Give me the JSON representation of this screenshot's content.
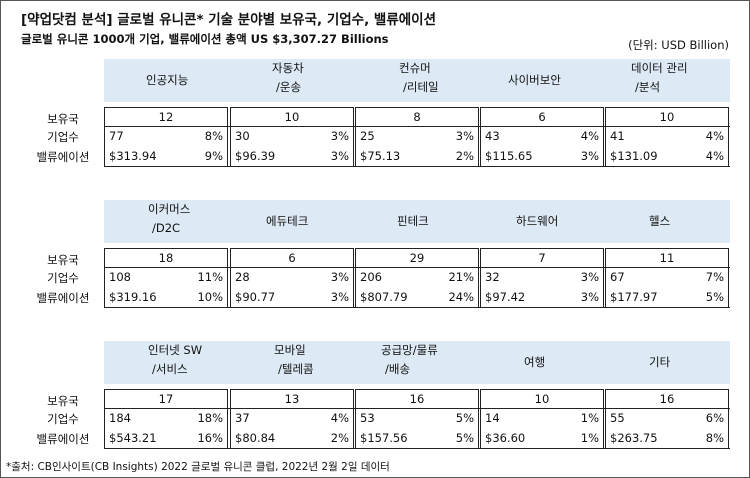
{
  "title": "[약업닷컴 분석] 글로벌 유니콘* 기술 분야별 보유국, 기업수, 밸류에이션",
  "subtitle": "글로벌 유니콘 1000개 기업, 밸류에이션 총액 US $3,307.27 Billions",
  "unit": "(단위: USD Billion)",
  "row_labels": {
    "countries": "보유국",
    "companies": "기업수",
    "valuation": "밸류에이션"
  },
  "blocks": [
    {
      "sectors": [
        {
          "name1": "인공지능",
          "name2": "",
          "countries": "12",
          "companies": "77",
          "companies_pct": "8%",
          "valuation": "$313.94",
          "valuation_pct": "9%"
        },
        {
          "name1": "자동차",
          "name2": "/운송",
          "countries": "10",
          "companies": "30",
          "companies_pct": "3%",
          "valuation": "$96.39",
          "valuation_pct": "3%"
        },
        {
          "name1": "컨슈머",
          "name2": "/리테일",
          "countries": "8",
          "companies": "25",
          "companies_pct": "3%",
          "valuation": "$75.13",
          "valuation_pct": "2%"
        },
        {
          "name1": "사이버보안",
          "name2": "",
          "countries": "6",
          "companies": "43",
          "companies_pct": "4%",
          "valuation": "$115.65",
          "valuation_pct": "3%"
        },
        {
          "name1": "데이터 관리",
          "name2": "/분석",
          "countries": "10",
          "companies": "41",
          "companies_pct": "4%",
          "valuation": "$131.09",
          "valuation_pct": "4%"
        }
      ]
    },
    {
      "sectors": [
        {
          "name1": "이커머스",
          "name2": "/D2C",
          "countries": "18",
          "companies": "108",
          "companies_pct": "11%",
          "valuation": "$319.16",
          "valuation_pct": "10%"
        },
        {
          "name1": "에듀테크",
          "name2": "",
          "countries": "6",
          "companies": "28",
          "companies_pct": "3%",
          "valuation": "$90.77",
          "valuation_pct": "3%"
        },
        {
          "name1": "핀테크",
          "name2": "",
          "countries": "29",
          "companies": "206",
          "companies_pct": "21%",
          "valuation": "$807.79",
          "valuation_pct": "24%"
        },
        {
          "name1": "하드웨어",
          "name2": "",
          "countries": "7",
          "companies": "32",
          "companies_pct": "3%",
          "valuation": "$97.42",
          "valuation_pct": "3%"
        },
        {
          "name1": "헬스",
          "name2": "",
          "countries": "11",
          "companies": "67",
          "companies_pct": "7%",
          "valuation": "$177.97",
          "valuation_pct": "5%"
        }
      ]
    },
    {
      "sectors": [
        {
          "name1": "인터넷 SW",
          "name2": "/서비스",
          "countries": "17",
          "companies": "184",
          "companies_pct": "18%",
          "valuation": "$543.21",
          "valuation_pct": "16%"
        },
        {
          "name1": "모바일",
          "name2": "/텔레콤",
          "countries": "13",
          "companies": "37",
          "companies_pct": "4%",
          "valuation": "$80.84",
          "valuation_pct": "2%"
        },
        {
          "name1": "공급망/물류",
          "name2": "/배송",
          "countries": "16",
          "companies": "53",
          "companies_pct": "5%",
          "valuation": "$157.56",
          "valuation_pct": "5%"
        },
        {
          "name1": "여행",
          "name2": "",
          "countries": "10",
          "companies": "14",
          "companies_pct": "1%",
          "valuation": "$36.60",
          "valuation_pct": "1%"
        },
        {
          "name1": "기타",
          "name2": "",
          "countries": "16",
          "companies": "55",
          "companies_pct": "6%",
          "valuation": "$263.75",
          "valuation_pct": "8%"
        }
      ]
    }
  ],
  "footer": "*출처: CB인사이트(CB Insights) 2022 글로벌 유니콘 클럽, 2022년 2월 2일 데이터"
}
